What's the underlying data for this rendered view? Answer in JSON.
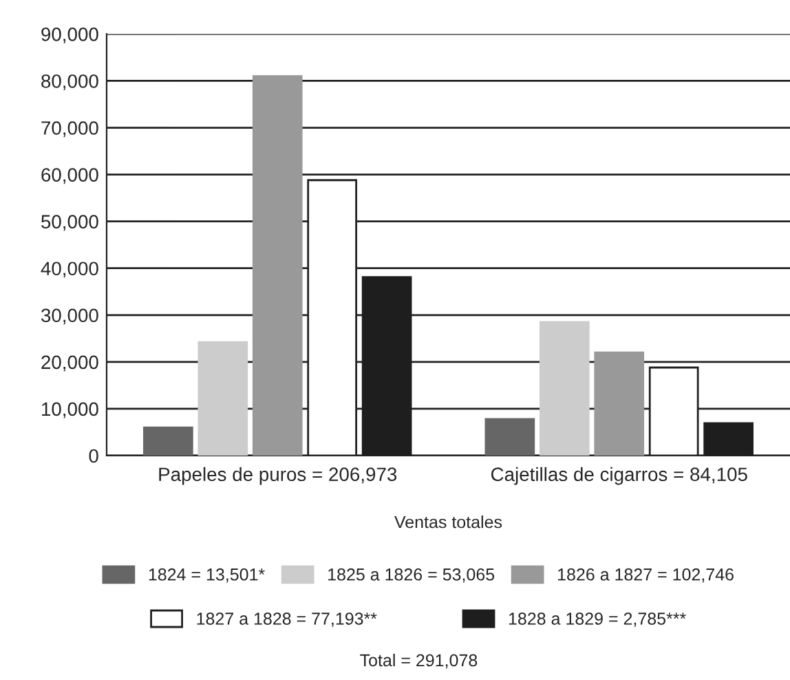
{
  "chart_data": {
    "type": "bar",
    "categories": [
      "Papeles de puros = 206,973",
      "Cajetillas de cigarros = 84,105"
    ],
    "series": [
      {
        "name": "1824 = 13,501*",
        "color": "#666666",
        "values": [
          6000,
          7800
        ]
      },
      {
        "name": "1825 a 1826 = 53,065",
        "color": "#cccccc",
        "values": [
          24200,
          28500
        ]
      },
      {
        "name": "1826 a 1827 = 102,746",
        "color": "#999999",
        "values": [
          81000,
          22000
        ]
      },
      {
        "name": "1827 a 1828 = 77,193**",
        "color": "#ffffff",
        "values": [
          58800,
          18800
        ]
      },
      {
        "name": "1828 a 1829 = 2,785***",
        "color": "#1e1e1e",
        "values": [
          38100,
          6900
        ]
      }
    ],
    "xlabel": "Ventas totales",
    "annotations": [
      "Total = 291,078"
    ],
    "ylim": [
      0,
      90000
    ],
    "yticks": [
      {
        "value": 0,
        "label": "0"
      },
      {
        "value": 10000,
        "label": "10,000"
      },
      {
        "value": 20000,
        "label": "20,000"
      },
      {
        "value": 30000,
        "label": "30,000"
      },
      {
        "value": 40000,
        "label": "40,000"
      },
      {
        "value": 50000,
        "label": "50,000"
      },
      {
        "value": 60000,
        "label": "60,000"
      },
      {
        "value": 70000,
        "label": "70,000"
      },
      {
        "value": 80000,
        "label": "80,000"
      },
      {
        "value": 90000,
        "label": "90,000"
      }
    ],
    "grid": "y",
    "legend": "bottom"
  }
}
